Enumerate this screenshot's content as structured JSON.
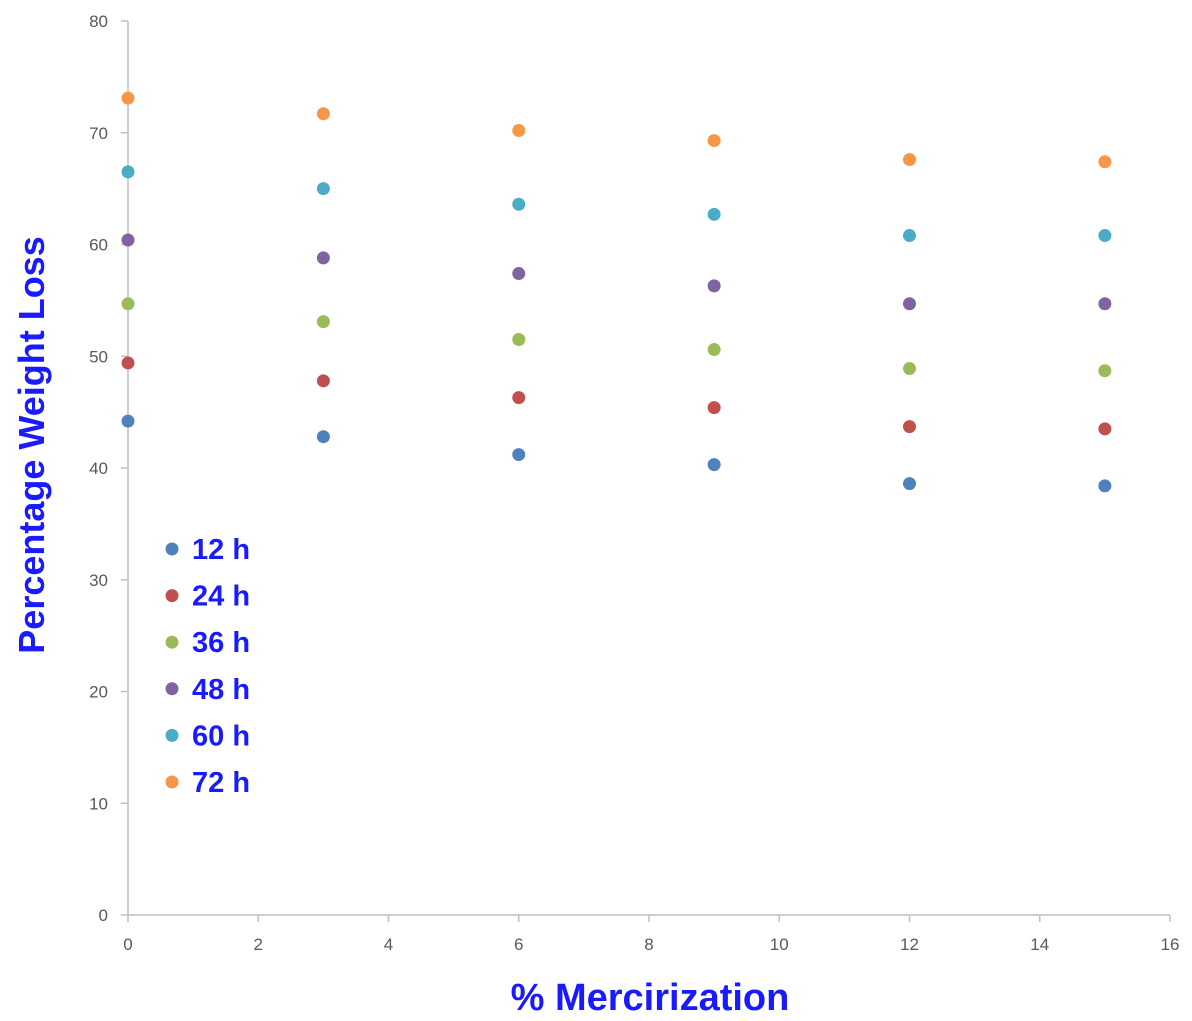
{
  "chart_data": {
    "type": "scatter",
    "title": "",
    "xlabel": "% Mercirization",
    "ylabel": "Percentage Weight Loss",
    "xlim": [
      0,
      16
    ],
    "ylim": [
      0,
      80
    ],
    "xticks": [
      "0",
      "2",
      "4",
      "6",
      "8",
      "10",
      "12",
      "14",
      "16"
    ],
    "yticks": [
      "0",
      "10",
      "20",
      "30",
      "40",
      "50",
      "60",
      "70",
      "80"
    ],
    "grid": false,
    "legend_position": "left-middle",
    "x": [
      0,
      3,
      6,
      9,
      12,
      15
    ],
    "series": [
      {
        "name": "12 h",
        "color": "#4f81bd",
        "values": [
          44.2,
          42.8,
          41.2,
          40.3,
          38.6,
          38.4
        ]
      },
      {
        "name": "24 h",
        "color": "#c0504d",
        "values": [
          49.4,
          47.8,
          46.3,
          45.4,
          43.7,
          43.5
        ]
      },
      {
        "name": "36 h",
        "color": "#9bbb59",
        "values": [
          54.7,
          53.1,
          51.5,
          50.6,
          48.9,
          48.7
        ]
      },
      {
        "name": "48 h",
        "color": "#8064a2",
        "values": [
          60.4,
          58.8,
          57.4,
          56.3,
          54.7,
          54.7
        ]
      },
      {
        "name": "60 h",
        "color": "#4bacc6",
        "values": [
          66.5,
          65.0,
          63.6,
          62.7,
          60.8,
          60.8
        ]
      },
      {
        "name": "72 h",
        "color": "#f79646",
        "values": [
          73.1,
          71.7,
          70.2,
          69.3,
          67.6,
          67.4
        ]
      }
    ]
  }
}
